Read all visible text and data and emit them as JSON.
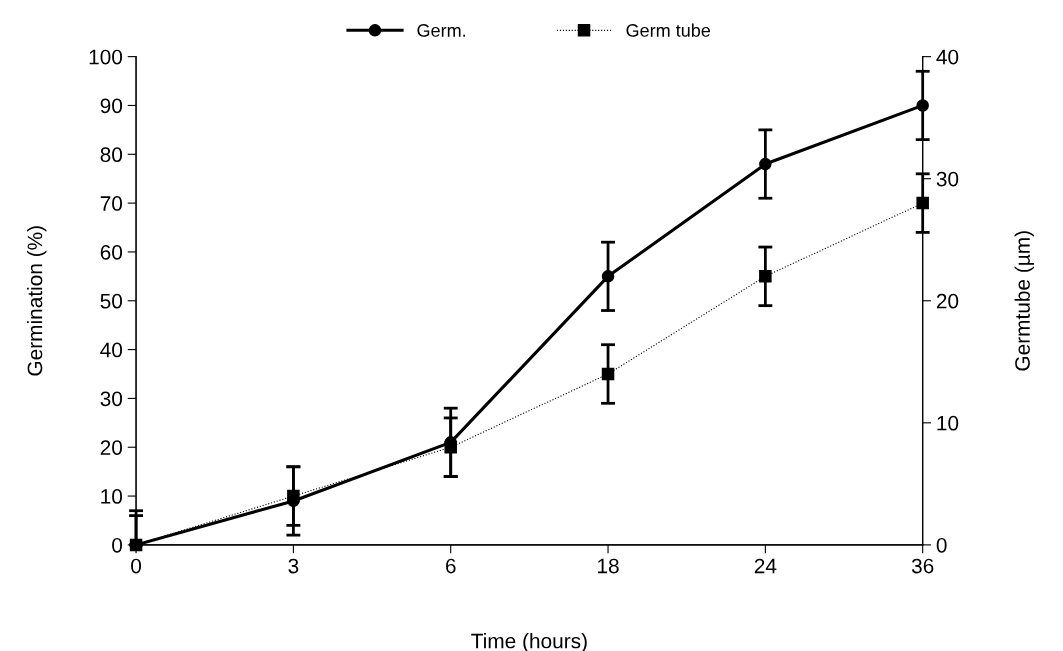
{
  "chart_data": {
    "type": "line",
    "xlabel": "Time (hours)",
    "ylabel": "Germination (%)",
    "y2label": "Germtube (µm)",
    "categories": [
      "0",
      "3",
      "6",
      "18",
      "24",
      "36"
    ],
    "series": [
      {
        "name": "Germ.",
        "color": "#000000",
        "marker": "circle",
        "line_style": "solid",
        "values": [
          0,
          9,
          21,
          55,
          78,
          90
        ],
        "errors": [
          [
            0,
            7
          ],
          7,
          7,
          7,
          7,
          7
        ]
      },
      {
        "name": "Germ tube",
        "color": "#000000",
        "marker": "square",
        "line_style": "dotted",
        "axis": "y2",
        "values": [
          0,
          4,
          8,
          14,
          22,
          28
        ],
        "errors": [
          [
            0,
            2.4
          ],
          2.4,
          2.4,
          2.4,
          2.4,
          2.4
        ]
      }
    ],
    "ylim": [
      0,
      100
    ],
    "yticks": [
      0,
      10,
      20,
      30,
      40,
      50,
      60,
      70,
      80,
      90,
      100
    ],
    "y2lim": [
      0,
      40
    ],
    "y2ticks": [
      0,
      10,
      20,
      30,
      40
    ],
    "grid": false,
    "legend": "top"
  }
}
